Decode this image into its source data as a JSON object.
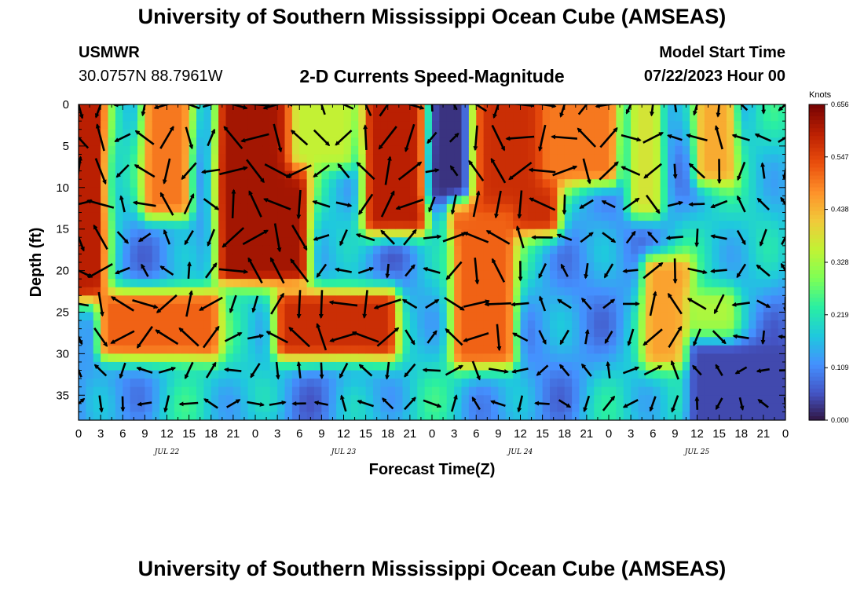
{
  "header": {
    "title": "University of Southern Mississippi Ocean Cube (AMSEAS)",
    "station": "USMWR",
    "coords": "30.0757N  88.7961W",
    "model_start_label": "Model Start Time",
    "model_start_value": "07/22/2023 Hour 00"
  },
  "footer": {
    "title": "University of Southern Mississippi Ocean Cube (AMSEAS)"
  },
  "chart_data": {
    "type": "heatmap",
    "title": "2-D Currents Speed-Magnitude",
    "xlabel": "Forecast Time(Z)",
    "ylabel": "Depth (ft)",
    "x_range_hours": [
      0,
      96
    ],
    "x_tick_step_hours": 3,
    "x_tick_labels": [
      "0",
      "3",
      "6",
      "9",
      "12",
      "15",
      "18",
      "21",
      "0",
      "3",
      "6",
      "9",
      "12",
      "15",
      "18",
      "21",
      "0",
      "3",
      "6",
      "9",
      "12",
      "15",
      "18",
      "21",
      "0",
      "3",
      "6",
      "9",
      "12",
      "15",
      "18",
      "21",
      "0"
    ],
    "date_labels": [
      {
        "hour": 12,
        "text": "JUL 22"
      },
      {
        "hour": 36,
        "text": "JUL 23"
      },
      {
        "hour": 60,
        "text": "JUL 24"
      },
      {
        "hour": 84,
        "text": "JUL 25"
      }
    ],
    "y_range_ft": [
      0,
      38
    ],
    "y_tick_values": [
      0,
      5,
      10,
      15,
      20,
      25,
      30,
      35
    ],
    "y_tick_labels": [
      "0",
      "5",
      "10",
      "15",
      "20",
      "25",
      "30",
      "35"
    ],
    "colorbar": {
      "units": "Knots",
      "min": 0.0,
      "max": 0.656,
      "tick_values": [
        0.0,
        0.109,
        0.219,
        0.328,
        0.438,
        0.547,
        0.656
      ],
      "tick_labels": [
        "0.000",
        "0.109",
        "0.219",
        "0.328",
        "0.438",
        "0.547",
        "0.656"
      ],
      "colormap": [
        "#30123b",
        "#4454c4",
        "#4490fe",
        "#1fc8de",
        "#29efa2",
        "#7dff56",
        "#c1f334",
        "#f1ca3a",
        "#fe922a",
        "#ea4f0d",
        "#be2102",
        "#7a0403"
      ]
    },
    "speed_bands_knots": [
      {
        "hours": [
          0,
          2.5
        ],
        "depth_ft": [
          0,
          22
        ],
        "speed": 0.6
      },
      {
        "hours": [
          10,
          14
        ],
        "depth_ft": [
          0,
          12
        ],
        "speed": 0.5
      },
      {
        "hours": [
          20,
          30
        ],
        "depth_ft": [
          0,
          20
        ],
        "speed": 0.62
      },
      {
        "hours": [
          30,
          36
        ],
        "depth_ft": [
          0,
          6
        ],
        "speed": 0.36
      },
      {
        "hours": [
          40,
          46
        ],
        "depth_ft": [
          0,
          14
        ],
        "speed": 0.6
      },
      {
        "hours": [
          52,
          64
        ],
        "depth_ft": [
          0,
          14
        ],
        "speed": 0.58
      },
      {
        "hours": [
          52,
          58
        ],
        "depth_ft": [
          14,
          30
        ],
        "speed": 0.52
      },
      {
        "hours": [
          64,
          72
        ],
        "depth_ft": [
          0,
          8
        ],
        "speed": 0.5
      },
      {
        "hours": [
          76,
          78
        ],
        "depth_ft": [
          0,
          12
        ],
        "speed": 0.38
      },
      {
        "hours": [
          85,
          88
        ],
        "depth_ft": [
          0,
          8
        ],
        "speed": 0.45
      },
      {
        "hours": [
          4,
          18
        ],
        "depth_ft": [
          24,
          29
        ],
        "speed": 0.52
      },
      {
        "hours": [
          28,
          42
        ],
        "depth_ft": [
          24,
          29
        ],
        "speed": 0.58
      },
      {
        "hours": [
          78,
          82
        ],
        "depth_ft": [
          20,
          30
        ],
        "speed": 0.46
      },
      {
        "hours": [
          84,
          88
        ],
        "depth_ft": [
          24,
          28
        ],
        "speed": 0.34
      },
      {
        "hours": [
          49,
          52
        ],
        "depth_ft": [
          0,
          10
        ],
        "speed": 0.03
      },
      {
        "hours": [
          84,
          96
        ],
        "depth_ft": [
          30,
          38
        ],
        "speed": 0.05
      }
    ],
    "vectors_grid": {
      "x_step_hours": 3,
      "depth_step_ft": 4,
      "note": "Arrow field of current direction overlaid at regular time/depth intervals"
    }
  }
}
